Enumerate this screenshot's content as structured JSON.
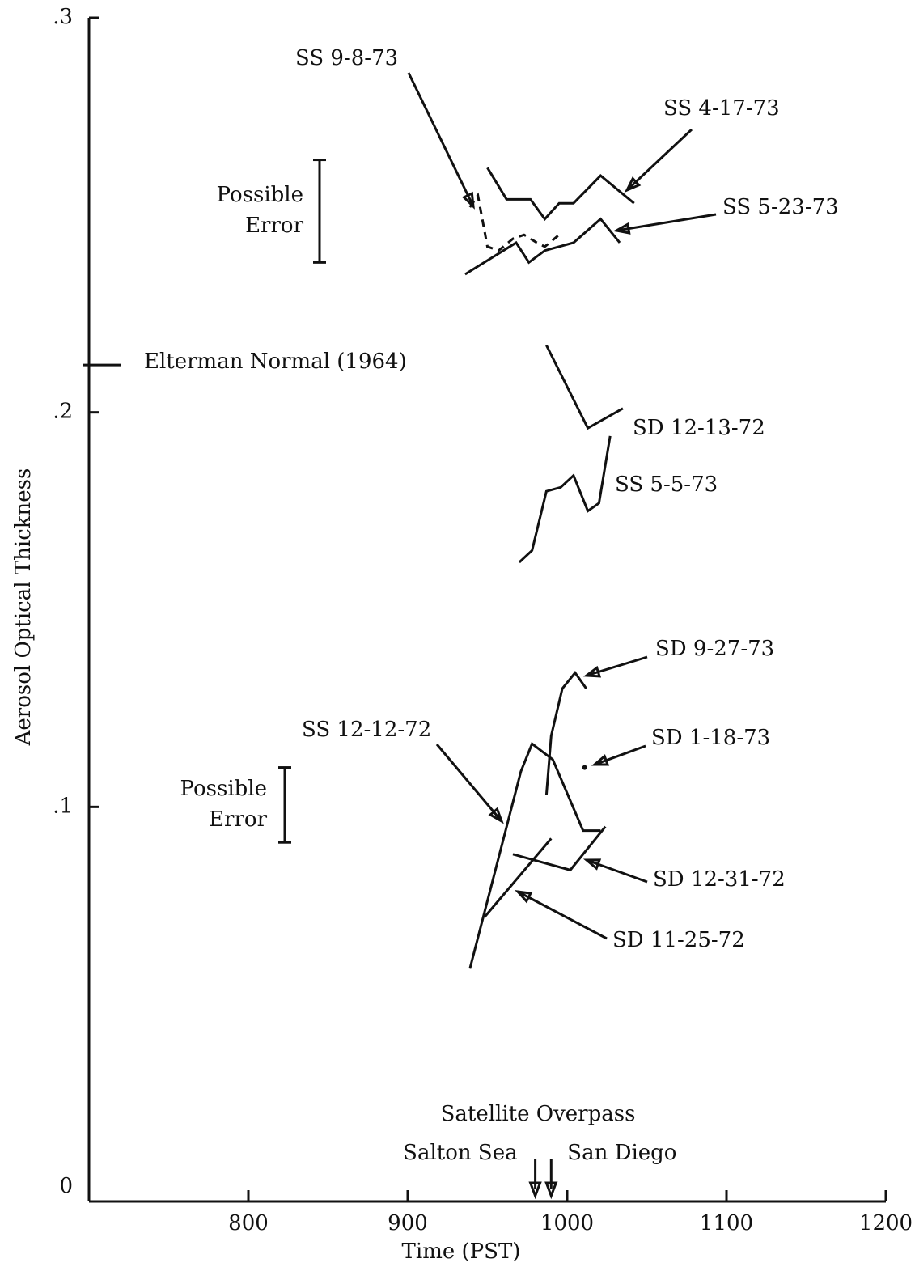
{
  "chart_data": {
    "type": "line",
    "x_label": "Time (PST)",
    "y_label": "Aerosol Optical Thickness",
    "xlim": [
      700,
      1200
    ],
    "xticks": [
      800,
      900,
      1000,
      1100,
      1200
    ],
    "ylim": [
      0,
      0.3
    ],
    "yticks": [
      0,
      {
        "value": 0.1,
        "label": ".1"
      },
      {
        "value": 0.2,
        "label": ".2"
      },
      {
        "value": 0.3,
        "label": ".3"
      }
    ],
    "color": "#111111",
    "series": [
      {
        "name": "SS 9-8-73",
        "style": "dashed",
        "x": [
          939,
          944,
          950,
          957,
          966,
          973,
          981,
          986,
          995
        ],
        "values": [
          0.252,
          0.255,
          0.242,
          0.241,
          0.244,
          0.245,
          0.243,
          0.242,
          0.245
        ]
      },
      {
        "name": "SS 4-17-73",
        "x": [
          950,
          962,
          977,
          986,
          995,
          1004,
          1021,
          1042
        ],
        "values": [
          0.262,
          0.254,
          0.254,
          0.249,
          0.253,
          0.253,
          0.26,
          0.253
        ]
      },
      {
        "name": "SS 5-23-73",
        "x": [
          936,
          968,
          976,
          986,
          1004,
          1021,
          1033
        ],
        "values": [
          0.235,
          0.243,
          0.238,
          0.241,
          0.243,
          0.249,
          0.243
        ]
      },
      {
        "name": "SD 12-13-72",
        "x": [
          987,
          1013,
          1035
        ],
        "values": [
          0.217,
          0.196,
          0.201
        ]
      },
      {
        "name": "SS 5-5-73",
        "x": [
          970,
          978,
          987,
          996,
          1004,
          1013,
          1020,
          1027
        ],
        "values": [
          0.162,
          0.165,
          0.18,
          0.181,
          0.184,
          0.175,
          0.177,
          0.194
        ]
      },
      {
        "name": "SD 9-27-73",
        "x": [
          987,
          990,
          997,
          1005,
          1012
        ],
        "values": [
          0.103,
          0.118,
          0.13,
          0.134,
          0.13
        ]
      },
      {
        "name": "SD 1-18-73",
        "x": [
          1011
        ],
        "values": [
          0.11
        ]
      },
      {
        "name": "SS 12-12-72",
        "x": [
          939,
          971,
          978,
          991,
          1010,
          1021
        ],
        "values": [
          0.059,
          0.109,
          0.116,
          0.112,
          0.094,
          0.094
        ]
      },
      {
        "name": "SD 12-31-72",
        "x": [
          966,
          1002,
          1024
        ],
        "values": [
          0.088,
          0.084,
          0.095
        ]
      },
      {
        "name": "SD 11-25-72",
        "x": [
          948,
          990
        ],
        "values": [
          0.072,
          0.092
        ]
      }
    ],
    "error_bars": [
      {
        "text_lines": [
          "Possible",
          "Error"
        ],
        "ylo": 0.238,
        "yhi": 0.264
      },
      {
        "text_lines": [
          "Possible",
          "Error"
        ],
        "ylo": 0.091,
        "yhi": 0.11
      }
    ],
    "reference": {
      "label": "Elterman Normal (1964)",
      "value": 0.212
    },
    "overpass": {
      "title": "Satellite Overpass",
      "points": [
        {
          "label": "Salton Sea",
          "x": 980
        },
        {
          "label": "San Diego",
          "x": 990
        }
      ]
    }
  }
}
